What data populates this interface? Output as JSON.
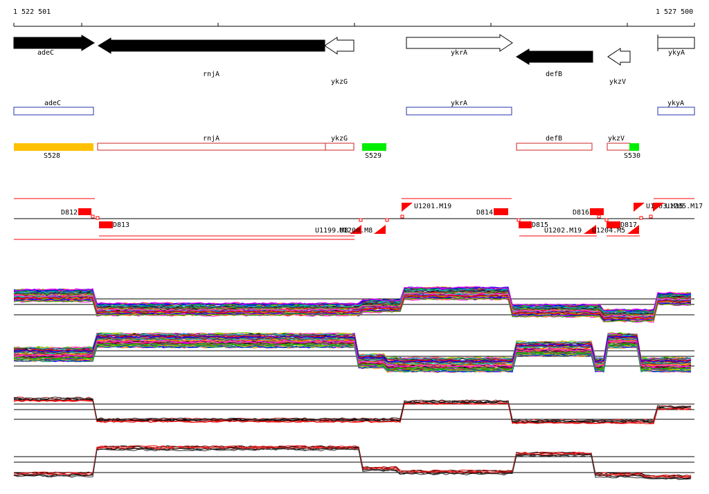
{
  "ruler": {
    "start_label": "1 522 501",
    "end_label": "1 527 500"
  },
  "genes_track": [
    {
      "name": "adeC",
      "strand": "+",
      "fill": "black"
    },
    {
      "name": "rnjA",
      "strand": "-",
      "fill": "black"
    },
    {
      "name": "ykzG",
      "strand": "-",
      "fill": "white"
    },
    {
      "name": "ykrA",
      "strand": "+",
      "fill": "white"
    },
    {
      "name": "defB",
      "strand": "-",
      "fill": "black"
    },
    {
      "name": "ykzV",
      "strand": "-",
      "fill": "white"
    },
    {
      "name": "ykyA",
      "strand": "+",
      "fill": "white"
    }
  ],
  "plus_boxes": [
    "adeC",
    "ykrA",
    "ykyA"
  ],
  "minus_boxes": [
    "rnjA",
    "ykzG",
    "defB",
    "ykzV"
  ],
  "segments": [
    {
      "label": "S528",
      "color": "#ffc000"
    },
    {
      "label": "S529",
      "color": "#00ee00"
    },
    {
      "label": "S530",
      "color": "#00ee00"
    }
  ],
  "features": {
    "upper_blocks": [
      "D812",
      "D814",
      "D816"
    ],
    "upper_flags": [
      "U1201.M19",
      "U1203.M15",
      "U1205.M17"
    ],
    "lower_blocks": [
      "D813",
      "D815",
      "D817"
    ],
    "lower_flags": [
      "U1199.M8",
      "U1200.M8",
      "U1202.M19",
      "U1204.M5"
    ]
  },
  "colors": {
    "gene_plus_box": "#2233aa",
    "gene_minus_box": "#cc2222",
    "feature_red": "#ff0000"
  }
}
